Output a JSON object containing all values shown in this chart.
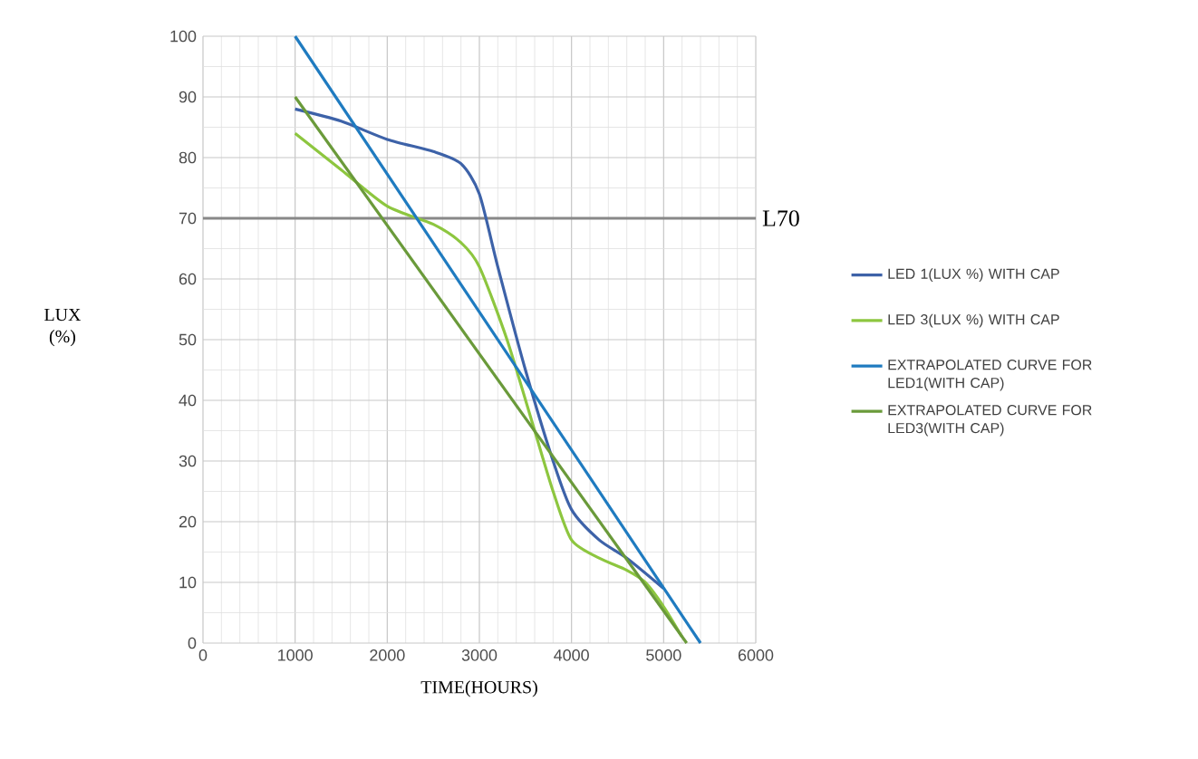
{
  "chart_data": {
    "type": "line",
    "xlabel": "TIME(HOURS)",
    "ylabel": "LUX (%)",
    "xlim": [
      0,
      6000
    ],
    "xticks": [
      0,
      1000,
      2000,
      3000,
      4000,
      5000,
      6000
    ],
    "ylim": [
      0,
      100
    ],
    "yticks": [
      0,
      10,
      20,
      30,
      40,
      50,
      60,
      70,
      80,
      90,
      100
    ],
    "grid": true,
    "legend": "right",
    "series": [
      {
        "name": "LED 1(LUX %) WITH CAP",
        "color": "#3d62a8",
        "x": [
          1000,
          1500,
          2000,
          2500,
          2800,
          3000,
          3200,
          3500,
          3800,
          4000,
          4300,
          4600,
          5000
        ],
        "values": [
          88,
          86,
          83,
          81,
          79,
          74,
          62,
          45,
          30,
          22,
          17,
          14,
          9
        ]
      },
      {
        "name": "LED 3(LUX %) WITH CAP",
        "color": "#8dc63f",
        "x": [
          1000,
          1500,
          2000,
          2500,
          2800,
          3000,
          3300,
          3600,
          3800,
          4000,
          4300,
          4600,
          4800,
          5000,
          5200
        ],
        "values": [
          84,
          78,
          72,
          69,
          66,
          62,
          50,
          35,
          25,
          17,
          14,
          12,
          10,
          6,
          1
        ]
      },
      {
        "name": "EXTRAPOLATED CURVE FOR LED1(WITH CAP)",
        "color": "#1f7bc0",
        "x": [
          1000,
          5400
        ],
        "values": [
          100,
          0
        ]
      },
      {
        "name": "EXTRAPOLATED CURVE FOR LED3(WITH CAP)",
        "color": "#6a9a3a",
        "x": [
          1000,
          5250
        ],
        "values": [
          90,
          0
        ]
      }
    ],
    "ref_lines": [
      {
        "axis": "y",
        "value": 70,
        "label": "L70",
        "color": "#888888"
      }
    ]
  }
}
